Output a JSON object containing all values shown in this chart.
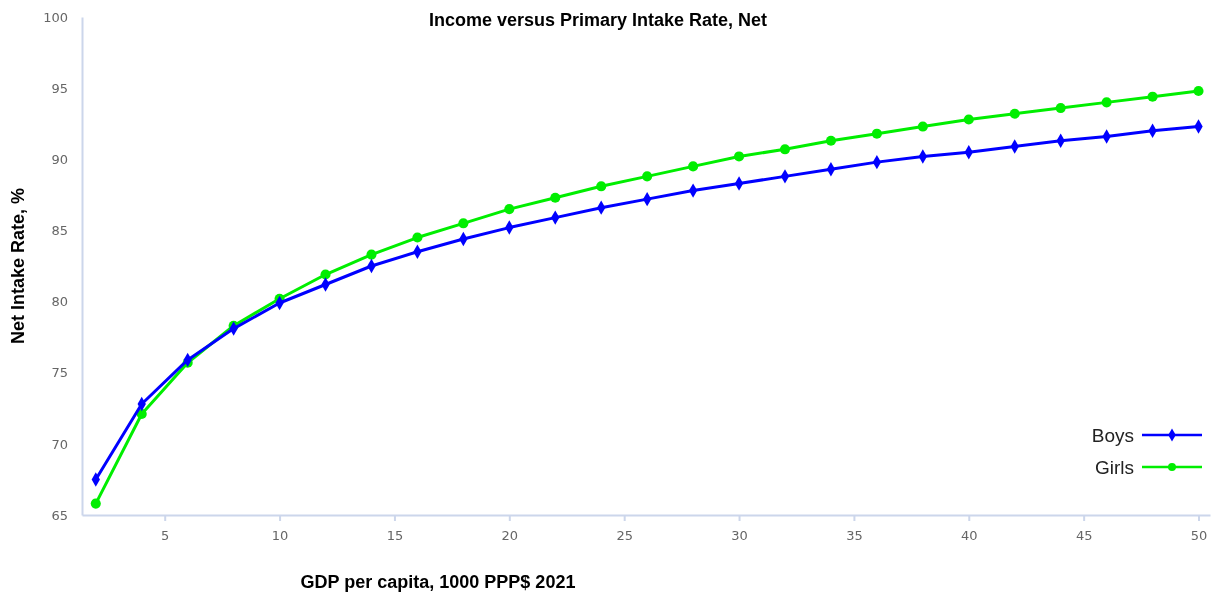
{
  "chart_data": {
    "type": "line",
    "title": "Income versus Primary Intake Rate, Net",
    "xlabel": "GDP per capita,  1000 PPP$ 2021",
    "ylabel": "Net  Intake Rate, %",
    "x": [
      2,
      4,
      6,
      8,
      10,
      12,
      14,
      16,
      18,
      20,
      22,
      24,
      26,
      28,
      30,
      32,
      34,
      36,
      38,
      40,
      42,
      44,
      46,
      48,
      50
    ],
    "series": [
      {
        "name": "Boys",
        "color": "#0000ff",
        "marker": "diamond",
        "values": [
          67.5,
          72.8,
          75.9,
          78.1,
          79.9,
          81.2,
          82.5,
          83.5,
          84.4,
          85.2,
          85.9,
          86.6,
          87.2,
          87.8,
          88.3,
          88.8,
          89.3,
          89.8,
          90.2,
          90.5,
          90.9,
          91.3,
          91.6,
          92.0,
          92.3
        ]
      },
      {
        "name": "Girls",
        "color": "#00ee00",
        "marker": "circle",
        "values": [
          65.8,
          72.1,
          75.7,
          78.3,
          80.2,
          81.9,
          83.3,
          84.5,
          85.5,
          86.5,
          87.3,
          88.1,
          88.8,
          89.5,
          90.2,
          90.7,
          91.3,
          91.8,
          92.3,
          92.8,
          93.2,
          93.6,
          94.0,
          94.4,
          94.8
        ]
      }
    ],
    "xlim": [
      1.4,
      50.5
    ],
    "xticks": [
      5,
      10,
      15,
      20,
      25,
      30,
      35,
      40,
      45,
      50
    ],
    "ylim": [
      65,
      100
    ],
    "yticks": [
      65,
      70,
      75,
      80,
      85,
      90,
      95,
      100
    ],
    "grid": false,
    "legend": "bottom right",
    "line_style": "solid"
  }
}
